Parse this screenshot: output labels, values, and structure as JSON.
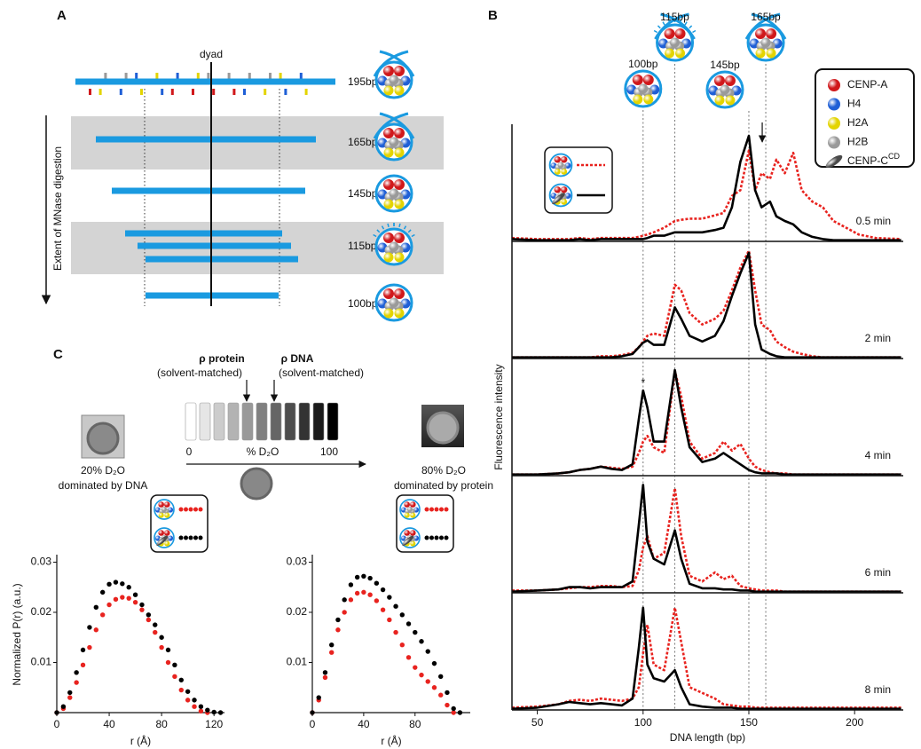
{
  "panel_a": {
    "label": "A",
    "dyad": "dyad",
    "axis_label": "Extent of MNase digestion",
    "rows": [
      "195bp",
      "165bp",
      "145bp",
      "115bp",
      "100bp"
    ]
  },
  "panel_c": {
    "label": "C",
    "rho_protein": "ρ protein",
    "rho_dna": "ρ DNA",
    "solvent_notes": [
      "(solvent-matched)",
      "(solvent-matched)"
    ],
    "scale": [
      "0",
      "% D₂O",
      "100"
    ],
    "left": [
      "20% D₂O",
      "dominated by DNA"
    ],
    "right": [
      "80% D₂O",
      "dominated by protein"
    ]
  },
  "chart_data": [
    {
      "type": "line",
      "label": "B",
      "xlabel": "DNA length (bp)",
      "ylabel": "Fluorescence intensity",
      "x": [
        38,
        50,
        60,
        65,
        70,
        75,
        80,
        85,
        90,
        95,
        98,
        100,
        102,
        105,
        110,
        115,
        118,
        122,
        128,
        134,
        138,
        142,
        146,
        150,
        153,
        156,
        160,
        163,
        167,
        171,
        175,
        180,
        185,
        190,
        196,
        202,
        210,
        222
      ],
      "xlim": [
        38,
        223
      ],
      "xticks": [
        50,
        100,
        150,
        200
      ],
      "ylim": [
        0,
        1
      ],
      "reference_lines": [
        100,
        115,
        150,
        158
      ],
      "peak_labels": [
        "100bp",
        "115bp",
        "145bp",
        "165bp"
      ],
      "peak_label_color": "#e8231f",
      "legend": [
        {
          "label": "CENP-A",
          "color": "#d0181b"
        },
        {
          "label": "H4",
          "color": "#1f5fd6"
        },
        {
          "label": "H2A",
          "color": "#e3d400"
        },
        {
          "label": "H2B",
          "color": "#9a9a9a"
        },
        {
          "label": "CENP-C",
          "superscript": "CD",
          "color": "#4a4a4a"
        }
      ],
      "panels": [
        {
          "label": "0.5 min",
          "series": [
            {
              "color": "#e8231f",
              "style": "dotted",
              "values": [
                0.03,
                0.02,
                0.02,
                0.02,
                0.03,
                0.02,
                0.03,
                0.03,
                0.03,
                0.03,
                0.04,
                0.05,
                0.06,
                0.08,
                0.12,
                0.18,
                0.19,
                0.2,
                0.2,
                0.23,
                0.25,
                0.4,
                0.45,
                0.8,
                0.45,
                0.6,
                0.55,
                0.72,
                0.6,
                0.78,
                0.45,
                0.35,
                0.3,
                0.18,
                0.12,
                0.06,
                0.03,
                0.02
              ]
            },
            {
              "color": "#000000",
              "style": "solid",
              "values": [
                0.02,
                0.01,
                0.01,
                0.01,
                0.02,
                0.01,
                0.02,
                0.02,
                0.02,
                0.02,
                0.02,
                0.02,
                0.03,
                0.05,
                0.05,
                0.08,
                0.08,
                0.08,
                0.08,
                0.1,
                0.12,
                0.3,
                0.7,
                0.93,
                0.45,
                0.3,
                0.35,
                0.22,
                0.18,
                0.15,
                0.08,
                0.04,
                0.02,
                0.01,
                0.01,
                0.01,
                0.01,
                0.01
              ]
            }
          ]
        },
        {
          "label": "2 min",
          "series": [
            {
              "color": "#e8231f",
              "style": "dotted",
              "values": [
                0.01,
                0.01,
                0.01,
                0.01,
                0.01,
                0.01,
                0.02,
                0.02,
                0.03,
                0.05,
                0.1,
                0.15,
                0.2,
                0.22,
                0.2,
                0.65,
                0.6,
                0.4,
                0.3,
                0.35,
                0.42,
                0.6,
                0.8,
                0.95,
                0.6,
                0.3,
                0.25,
                0.15,
                0.1,
                0.06,
                0.04,
                0.02,
                0.01,
                0.01,
                0.01,
                0.01,
                0.01,
                0.01
              ]
            },
            {
              "color": "#000000",
              "style": "solid",
              "values": [
                0.01,
                0.01,
                0.01,
                0.01,
                0.01,
                0.01,
                0.01,
                0.01,
                0.02,
                0.04,
                0.1,
                0.14,
                0.16,
                0.12,
                0.12,
                0.45,
                0.35,
                0.2,
                0.15,
                0.2,
                0.33,
                0.55,
                0.75,
                0.93,
                0.3,
                0.08,
                0.04,
                0.02,
                0.01,
                0.01,
                0.01,
                0.01,
                0.01,
                0.01,
                0.01,
                0.01,
                0.01,
                0.01
              ]
            }
          ]
        },
        {
          "label": "4 min",
          "annotation": "*",
          "series": [
            {
              "color": "#e8231f",
              "style": "dotted",
              "values": [
                0.01,
                0.01,
                0.02,
                0.03,
                0.05,
                0.06,
                0.08,
                0.07,
                0.06,
                0.08,
                0.2,
                0.3,
                0.35,
                0.25,
                0.2,
                0.92,
                0.7,
                0.3,
                0.15,
                0.2,
                0.3,
                0.22,
                0.28,
                0.15,
                0.08,
                0.05,
                0.03,
                0.02,
                0.02,
                0.01,
                0.01,
                0.01,
                0.01,
                0.01,
                0.01,
                0.01,
                0.01,
                0.01
              ]
            },
            {
              "color": "#000000",
              "style": "solid",
              "values": [
                0.01,
                0.01,
                0.02,
                0.03,
                0.05,
                0.06,
                0.08,
                0.06,
                0.05,
                0.1,
                0.5,
                0.75,
                0.6,
                0.3,
                0.3,
                0.93,
                0.6,
                0.25,
                0.12,
                0.15,
                0.2,
                0.15,
                0.1,
                0.05,
                0.03,
                0.02,
                0.02,
                0.02,
                0.01,
                0.01,
                0.01,
                0.01,
                0.01,
                0.01,
                0.01,
                0.01,
                0.01,
                0.01
              ]
            }
          ]
        },
        {
          "label": "6 min",
          "series": [
            {
              "color": "#e8231f",
              "style": "dotted",
              "values": [
                0.02,
                0.02,
                0.03,
                0.04,
                0.05,
                0.05,
                0.06,
                0.06,
                0.05,
                0.06,
                0.2,
                0.4,
                0.5,
                0.3,
                0.35,
                0.92,
                0.5,
                0.15,
                0.1,
                0.18,
                0.12,
                0.15,
                0.06,
                0.04,
                0.03,
                0.02,
                0.02,
                0.02,
                0.01,
                0.01,
                0.01,
                0.01,
                0.01,
                0.01,
                0.01,
                0.01,
                0.01,
                0.01
              ]
            },
            {
              "color": "#000000",
              "style": "solid",
              "values": [
                0.01,
                0.02,
                0.03,
                0.05,
                0.05,
                0.04,
                0.05,
                0.05,
                0.05,
                0.1,
                0.6,
                0.95,
                0.45,
                0.3,
                0.25,
                0.55,
                0.3,
                0.08,
                0.04,
                0.04,
                0.03,
                0.03,
                0.02,
                0.02,
                0.01,
                0.01,
                0.01,
                0.01,
                0.01,
                0.01,
                0.01,
                0.01,
                0.01,
                0.01,
                0.01,
                0.01,
                0.01,
                0.01
              ]
            }
          ]
        },
        {
          "label": "8 min",
          "series": [
            {
              "color": "#e8231f",
              "style": "dotted",
              "values": [
                0.02,
                0.03,
                0.05,
                0.08,
                0.09,
                0.08,
                0.1,
                0.09,
                0.08,
                0.1,
                0.2,
                0.5,
                0.75,
                0.4,
                0.35,
                0.9,
                0.6,
                0.2,
                0.15,
                0.1,
                0.05,
                0.04,
                0.03,
                0.03,
                0.02,
                0.02,
                0.02,
                0.02,
                0.02,
                0.02,
                0.02,
                0.02,
                0.02,
                0.02,
                0.02,
                0.02,
                0.02,
                0.02
              ]
            },
            {
              "color": "#000000",
              "style": "solid",
              "values": [
                0.01,
                0.02,
                0.05,
                0.07,
                0.06,
                0.05,
                0.06,
                0.05,
                0.04,
                0.1,
                0.55,
                0.9,
                0.4,
                0.28,
                0.25,
                0.35,
                0.2,
                0.05,
                0.03,
                0.02,
                0.02,
                0.02,
                0.01,
                0.01,
                0.01,
                0.01,
                0.01,
                0.01,
                0.01,
                0.01,
                0.01,
                0.01,
                0.01,
                0.01,
                0.01,
                0.01,
                0.01,
                0.01
              ]
            }
          ]
        }
      ]
    },
    {
      "type": "line",
      "marker": "dot",
      "ylabel": "Normalized P(r) (a.u.)",
      "xlabel": "r (Å)",
      "x": [
        0,
        5,
        10,
        15,
        20,
        25,
        30,
        35,
        40,
        45,
        50,
        55,
        60,
        65,
        70,
        75,
        80,
        85,
        90,
        95,
        100,
        105,
        110,
        115,
        120,
        125
      ],
      "xlim": [
        0,
        128
      ],
      "xticks": [
        0,
        40,
        80,
        120
      ],
      "ylim": [
        0,
        0.0315
      ],
      "yticks": [
        0.01,
        0.02,
        0.03
      ],
      "series": [
        {
          "color": "#e8231f",
          "values": [
            0,
            0.0008,
            0.003,
            0.006,
            0.0095,
            0.013,
            0.0165,
            0.0195,
            0.0215,
            0.0226,
            0.023,
            0.0228,
            0.022,
            0.0205,
            0.0185,
            0.016,
            0.013,
            0.01,
            0.0072,
            0.0045,
            0.0025,
            0.0012,
            0.0003,
            0,
            null,
            null
          ]
        },
        {
          "color": "#000000",
          "values": [
            0,
            0.0012,
            0.004,
            0.008,
            0.0125,
            0.017,
            0.021,
            0.024,
            0.0256,
            0.026,
            0.0257,
            0.025,
            0.0235,
            0.0215,
            0.0195,
            0.0175,
            0.015,
            0.0125,
            0.0095,
            0.0065,
            0.0042,
            0.0025,
            0.0012,
            0.0005,
            0.0001,
            0
          ]
        }
      ]
    },
    {
      "type": "line",
      "marker": "dot",
      "xlabel": "r (Å)",
      "x": [
        0,
        5,
        10,
        15,
        20,
        25,
        30,
        35,
        40,
        45,
        50,
        55,
        60,
        65,
        70,
        75,
        80,
        85,
        90,
        95,
        100,
        105,
        110,
        115
      ],
      "xlim": [
        0,
        123
      ],
      "xticks": [
        0,
        40,
        80
      ],
      "ylim": [
        0,
        0.0315
      ],
      "yticks": [
        0.01,
        0.02,
        0.03
      ],
      "series": [
        {
          "color": "#e8231f",
          "values": [
            0,
            0.0025,
            0.007,
            0.012,
            0.0165,
            0.02,
            0.0225,
            0.0238,
            0.024,
            0.0235,
            0.0223,
            0.0205,
            0.0185,
            0.016,
            0.0135,
            0.011,
            0.009,
            0.0075,
            0.0062,
            0.005,
            0.0035,
            0.0015,
            0,
            null
          ]
        },
        {
          "color": "#000000",
          "values": [
            0,
            0.003,
            0.008,
            0.0135,
            0.0185,
            0.0225,
            0.0255,
            0.027,
            0.0272,
            0.0268,
            0.0258,
            0.0245,
            0.023,
            0.0212,
            0.0195,
            0.0177,
            0.016,
            0.0142,
            0.0122,
            0.0098,
            0.0072,
            0.004,
            0.0008,
            0
          ]
        }
      ]
    }
  ]
}
